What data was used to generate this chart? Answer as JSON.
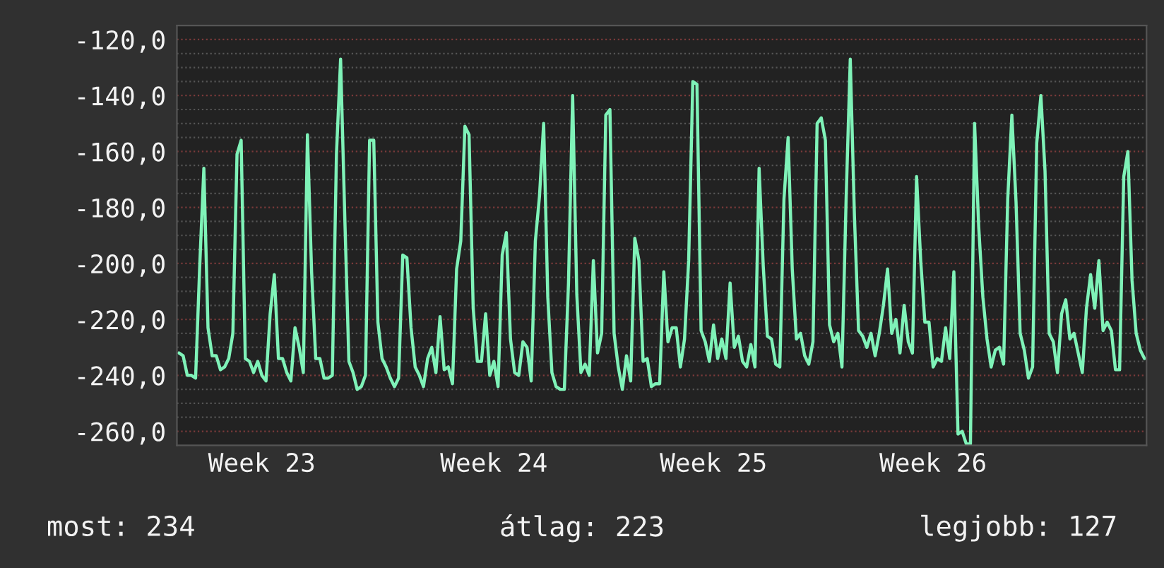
{
  "chart_data": {
    "type": "line",
    "categories": [
      null,
      null,
      null,
      null,
      null,
      null,
      null,
      null,
      null,
      null,
      null,
      null,
      null,
      null,
      null,
      null,
      null,
      null,
      null,
      null,
      "Week 23",
      null,
      null,
      null,
      null,
      null,
      null,
      null,
      null,
      null,
      null,
      null,
      null,
      null,
      null,
      null,
      null,
      null,
      null,
      null,
      null,
      null,
      null,
      null,
      null,
      null,
      null,
      null,
      null,
      null,
      null,
      null,
      null,
      null,
      null,
      null,
      null,
      null,
      null,
      null,
      null,
      null,
      null,
      null,
      null,
      null,
      null,
      null,
      null,
      null,
      null,
      null,
      null,
      null,
      null,
      null,
      "Week 24",
      null,
      null,
      null,
      null,
      null,
      null,
      null,
      null,
      null,
      null,
      null,
      null,
      null,
      null,
      null,
      null,
      null,
      null,
      null,
      null,
      null,
      null,
      null,
      null,
      null,
      null,
      null,
      null,
      null,
      null,
      null,
      null,
      null,
      null,
      null,
      null,
      null,
      null,
      null,
      null,
      null,
      null,
      null,
      null,
      null,
      null,
      null,
      null,
      null,
      null,
      null,
      null,
      "Week 25",
      null,
      null,
      null,
      null,
      null,
      null,
      null,
      null,
      null,
      null,
      null,
      null,
      null,
      null,
      null,
      null,
      null,
      null,
      null,
      null,
      null,
      null,
      null,
      null,
      null,
      null,
      null,
      null,
      null,
      null,
      null,
      null,
      null,
      null,
      null,
      null,
      null,
      null,
      null,
      null,
      null,
      null,
      null,
      null,
      null,
      null,
      null,
      null,
      null,
      null,
      null,
      null,
      "Week 26",
      null,
      null,
      null,
      null,
      null,
      null,
      null,
      null,
      null,
      null,
      null,
      null,
      null,
      null,
      null,
      null,
      null,
      null,
      null,
      null,
      null,
      null,
      null,
      null,
      null,
      null,
      null,
      null,
      null,
      null,
      null,
      null,
      null,
      null,
      null,
      null,
      null,
      null,
      null,
      null,
      null,
      null,
      null,
      null,
      null,
      null,
      null,
      null,
      null,
      null,
      null
    ],
    "series": [
      {
        "color": "#7ff2b8",
        "values": [
          -232,
          -233,
          -240,
          -240,
          -241,
          -201,
          -166,
          -223,
          -233,
          -233,
          -238,
          -237,
          -234,
          -225,
          -161,
          -156,
          -234,
          -235,
          -239,
          -235,
          -240,
          -242,
          -218,
          -204,
          -234,
          -234,
          -239,
          -242,
          -223,
          -230,
          -239,
          -154,
          -203,
          -234,
          -234,
          -241,
          -241,
          -240,
          -161,
          -127,
          -183,
          -235,
          -239,
          -245,
          -244,
          -240,
          -156,
          -156,
          -221,
          -234,
          -237,
          -241,
          -244,
          -241,
          -197,
          -198,
          -223,
          -237,
          -240,
          -244,
          -234,
          -230,
          -239,
          -219,
          -238,
          -237,
          -243,
          -202,
          -192,
          -151,
          -154,
          -216,
          -235,
          -235,
          -218,
          -240,
          -235,
          -244,
          -197,
          -189,
          -227,
          -239,
          -240,
          -228,
          -230,
          -242,
          -192,
          -176,
          -150,
          -212,
          -239,
          -244,
          -245,
          -245,
          -207,
          -140,
          -211,
          -239,
          -236,
          -240,
          -199,
          -232,
          -225,
          -147,
          -145,
          -225,
          -237,
          -245,
          -233,
          -242,
          -191,
          -199,
          -235,
          -234,
          -244,
          -243,
          -243,
          -203,
          -228,
          -223,
          -223,
          -237,
          -227,
          -199,
          -135,
          -136,
          -224,
          -228,
          -235,
          -222,
          -234,
          -227,
          -234,
          -207,
          -230,
          -226,
          -235,
          -237,
          -229,
          -237,
          -166,
          -201,
          -226,
          -227,
          -236,
          -237,
          -177,
          -155,
          -202,
          -227,
          -225,
          -233,
          -236,
          -228,
          -150,
          -148,
          -156,
          -222,
          -228,
          -225,
          -237,
          -177,
          -127,
          -183,
          -224,
          -226,
          -230,
          -225,
          -233,
          -225,
          -215,
          -202,
          -225,
          -220,
          -232,
          -215,
          -228,
          -232,
          -169,
          -199,
          -221,
          -221,
          -237,
          -234,
          -235,
          -223,
          -234,
          -203,
          -261,
          -260,
          -264.5,
          -264.5,
          -150,
          -187,
          -212,
          -227,
          -237,
          -231,
          -230,
          -236,
          -177,
          -147,
          -178,
          -225,
          -231,
          -241,
          -237,
          -157,
          -140,
          -167,
          -225,
          -228,
          -239,
          -218,
          -213,
          -227,
          -225,
          -232,
          -239,
          -216,
          -204,
          -216,
          -199,
          -224,
          -221,
          -224,
          -238,
          -238,
          -169,
          -160,
          -206,
          -225,
          -231,
          -234
        ]
      }
    ],
    "ylim": [
      -265,
      -115
    ],
    "yticks": [
      {
        "value": -120,
        "label": "-120,0"
      },
      {
        "value": -125,
        "label": null
      },
      {
        "value": -130,
        "label": null
      },
      {
        "value": -135,
        "label": null
      },
      {
        "value": -140,
        "label": "-140,0"
      },
      {
        "value": -145,
        "label": null
      },
      {
        "value": -150,
        "label": null
      },
      {
        "value": -155,
        "label": null
      },
      {
        "value": -160,
        "label": "-160,0"
      },
      {
        "value": -165,
        "label": null
      },
      {
        "value": -170,
        "label": null
      },
      {
        "value": -175,
        "label": null
      },
      {
        "value": -180,
        "label": "-180,0"
      },
      {
        "value": -185,
        "label": null
      },
      {
        "value": -190,
        "label": null
      },
      {
        "value": -195,
        "label": null
      },
      {
        "value": -200,
        "label": "-200,0"
      },
      {
        "value": -205,
        "label": null
      },
      {
        "value": -210,
        "label": null
      },
      {
        "value": -215,
        "label": null
      },
      {
        "value": -220,
        "label": "-220,0"
      },
      {
        "value": -225,
        "label": null
      },
      {
        "value": -230,
        "label": null
      },
      {
        "value": -235,
        "label": null
      },
      {
        "value": -240,
        "label": "-240,0"
      },
      {
        "value": -245,
        "label": null
      },
      {
        "value": -250,
        "label": null
      },
      {
        "value": -255,
        "label": null
      },
      {
        "value": -260,
        "label": "-260,0"
      }
    ],
    "grid": "y",
    "legend": false,
    "marker": "none",
    "line_style": "solid",
    "annotations": [
      "most: 234",
      "átlag: 223",
      "legjobb: 127"
    ]
  }
}
